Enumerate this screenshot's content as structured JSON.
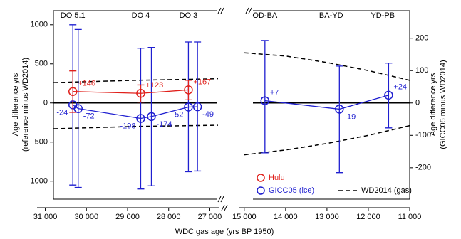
{
  "chart_data": [
    {
      "type": "errorbar",
      "xlabel": "WDC gas age (yrs BP 1950)",
      "ylabel": [
        "Age difference yrs",
        "(reference minus WD2014)"
      ],
      "xlim": [
        31200,
        26800
      ],
      "xticks": [
        {
          "value": 31000,
          "label": "31 000"
        },
        {
          "value": 30000,
          "label": "30 000"
        },
        {
          "value": 29000,
          "label": "29 000"
        },
        {
          "value": 28000,
          "label": "28 000"
        },
        {
          "value": 27000,
          "label": "27 000"
        }
      ],
      "ylim": [
        -1230,
        1180
      ],
      "yticks": [
        -1000,
        -500,
        0,
        500,
        1000
      ],
      "annotations": [
        {
          "text": "DO 5.1",
          "x": 30330
        },
        {
          "text": "DO 4",
          "x": 28680
        },
        {
          "text": "DO 3",
          "x": 27520
        }
      ],
      "series": [
        {
          "name": "WD2014 (gas)",
          "style": "dashed",
          "color": "#000000",
          "x": [
            30800,
            28800,
            26800
          ],
          "upper": [
            260,
            290,
            310
          ],
          "lower": [
            -330,
            -300,
            -285
          ]
        },
        {
          "name": "GICC05 (ice)",
          "color": "#1f1fd0",
          "x": [
            30330,
            30200,
            28680,
            28420,
            27520,
            27300
          ],
          "values": [
            -24,
            -72,
            -198,
            -174,
            -52,
            -49
          ],
          "lower": [
            -1050,
            -1080,
            -1100,
            -1060,
            -880,
            -870
          ],
          "upper": [
            1000,
            940,
            700,
            710,
            780,
            780
          ]
        },
        {
          "name": "Hulu",
          "color": "#e0201b",
          "x": [
            30330,
            28680,
            27520
          ],
          "values": [
            146,
            123,
            167
          ],
          "value_labels": [
            "+146",
            "+123",
            "+167"
          ],
          "lower": [
            -120,
            10,
            40
          ],
          "upper": [
            410,
            230,
            290
          ]
        }
      ]
    },
    {
      "type": "errorbar",
      "ylabel": [
        "Age difference yrs",
        "(GICC05 minus WD2014)"
      ],
      "xlim": [
        15100,
        11000
      ],
      "xticks": [
        {
          "value": 15000,
          "label": "15 000"
        },
        {
          "value": 14000,
          "label": "14 000"
        },
        {
          "value": 13000,
          "label": "13 000"
        },
        {
          "value": 12000,
          "label": "12 000"
        },
        {
          "value": 11000,
          "label": "11 000"
        }
      ],
      "ylim": [
        -297,
        285
      ],
      "yticks": [
        -200,
        -100,
        0,
        100,
        200
      ],
      "annotations": [
        {
          "text": "OD-BA",
          "x": 14500
        },
        {
          "text": "BA-YD",
          "x": 12900
        },
        {
          "text": "YD-PB",
          "x": 11650
        }
      ],
      "series": [
        {
          "name": "WD2014 (gas)",
          "style": "dashed",
          "color": "#000000",
          "x": [
            15000,
            14000,
            13000,
            12000,
            11000
          ],
          "upper": [
            155,
            145,
            125,
            100,
            70
          ],
          "lower": [
            -160,
            -145,
            -125,
            -100,
            -70
          ]
        },
        {
          "name": "GICC05 (ice)",
          "color": "#1f1fd0",
          "x": [
            14500,
            12700,
            11510
          ],
          "values": [
            7,
            -19,
            24
          ],
          "value_labels": [
            "+7",
            "-19",
            "+24"
          ],
          "lower": [
            -154,
            -215,
            -77
          ],
          "upper": [
            193,
            114,
            123
          ]
        }
      ]
    }
  ]
}
